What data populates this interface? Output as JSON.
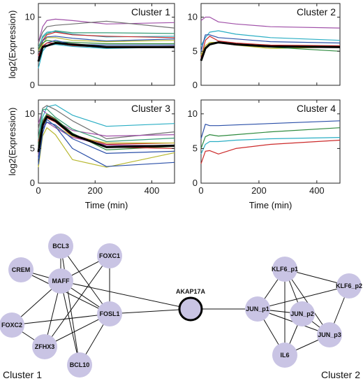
{
  "chart_data": [
    {
      "type": "line",
      "title": "Cluster 1",
      "ylabel": "log2(Expression)",
      "xlabel": "",
      "xlim": [
        0,
        480
      ],
      "ylim": [
        0,
        12
      ],
      "xticks": [
        0,
        200,
        400
      ],
      "yticks": [
        0,
        5,
        10
      ],
      "x": [
        0,
        15,
        30,
        60,
        120,
        240,
        480
      ],
      "grid": false,
      "series": [
        {
          "color": "#a050a8",
          "width": 1.2,
          "values": [
            6.3,
            8.6,
            9.5,
            9.7,
            9.5,
            9.0,
            9.2
          ]
        },
        {
          "color": "#707070",
          "width": 1.2,
          "values": [
            6.2,
            7.8,
            8.6,
            8.8,
            9.0,
            9.4,
            8.4
          ]
        },
        {
          "color": "#3a9e78",
          "width": 1.2,
          "values": [
            5.6,
            7.0,
            7.6,
            8.0,
            7.7,
            7.7,
            7.6
          ]
        },
        {
          "color": "#2aaec4",
          "width": 1.2,
          "values": [
            5.1,
            7.2,
            7.8,
            7.9,
            7.5,
            7.1,
            7.2
          ]
        },
        {
          "color": "#cc2a2a",
          "width": 1.2,
          "values": [
            5.2,
            6.6,
            7.4,
            7.8,
            7.4,
            7.2,
            7.0
          ]
        },
        {
          "color": "#2a4fa8",
          "width": 1.2,
          "values": [
            4.2,
            6.5,
            7.1,
            7.2,
            6.9,
            6.5,
            6.8
          ]
        },
        {
          "color": "#b8b830",
          "width": 1.2,
          "values": [
            5.0,
            6.0,
            7.0,
            7.0,
            6.6,
            6.4,
            6.6
          ]
        },
        {
          "color": "#2e8a3e",
          "width": 1.2,
          "values": [
            5.3,
            6.2,
            6.6,
            6.4,
            6.3,
            6.1,
            6.1
          ]
        },
        {
          "color": "#2a4fa8",
          "width": 1.2,
          "values": [
            3.6,
            5.6,
            6.2,
            6.6,
            6.0,
            5.9,
            5.9
          ]
        },
        {
          "color": "#cc2a2a",
          "width": 1.2,
          "values": [
            4.3,
            5.8,
            6.2,
            6.2,
            5.8,
            5.6,
            5.7
          ]
        },
        {
          "color": "#2aaec4",
          "width": 1.2,
          "values": [
            2.5,
            5.0,
            5.8,
            6.0,
            5.7,
            5.4,
            5.6
          ]
        },
        {
          "color": "#000000",
          "width": 3.0,
          "values": [
            3.5,
            5.6,
            5.8,
            6.2,
            6.0,
            5.6,
            5.6
          ]
        }
      ]
    },
    {
      "type": "line",
      "title": "Cluster 2",
      "ylabel": "",
      "xlabel": "",
      "xlim": [
        0,
        480
      ],
      "ylim": [
        0,
        12
      ],
      "xticks": [
        0,
        200,
        400
      ],
      "yticks": [
        0,
        5,
        10
      ],
      "x": [
        0,
        15,
        30,
        60,
        120,
        240,
        480
      ],
      "grid": false,
      "series": [
        {
          "color": "#a050a8",
          "width": 1.2,
          "values": [
            9.5,
            10.0,
            10.0,
            9.3,
            9.0,
            8.6,
            8.4
          ]
        },
        {
          "color": "#2aaec4",
          "width": 1.2,
          "values": [
            5.8,
            7.0,
            7.8,
            8.0,
            7.5,
            7.0,
            6.6
          ]
        },
        {
          "color": "#2a4fa8",
          "width": 1.2,
          "values": [
            5.0,
            7.4,
            7.4,
            7.0,
            6.8,
            6.4,
            6.2
          ]
        },
        {
          "color": "#cc2a2a",
          "width": 1.2,
          "values": [
            4.0,
            6.6,
            7.2,
            6.5,
            6.2,
            5.9,
            5.8
          ]
        },
        {
          "color": "#b8b830",
          "width": 1.2,
          "values": [
            4.4,
            5.8,
            6.3,
            6.3,
            5.9,
            5.4,
            5.6
          ]
        },
        {
          "color": "#2e8a3e",
          "width": 1.2,
          "values": [
            3.6,
            5.4,
            6.0,
            6.2,
            6.0,
            5.6,
            5.0
          ]
        },
        {
          "color": "#000000",
          "width": 3.0,
          "values": [
            3.6,
            5.4,
            6.0,
            6.3,
            6.0,
            5.7,
            5.6
          ]
        }
      ]
    },
    {
      "type": "line",
      "title": "Cluster 3",
      "ylabel": "log2(Expression)",
      "xlabel": "Time (min)",
      "xlim": [
        0,
        480
      ],
      "ylim": [
        0,
        12
      ],
      "xticks": [
        0,
        200,
        400
      ],
      "yticks": [
        0,
        5,
        10
      ],
      "x": [
        0,
        15,
        30,
        60,
        120,
        240,
        480
      ],
      "grid": false,
      "series": [
        {
          "color": "#2aaec4",
          "width": 1.2,
          "values": [
            6.3,
            9.5,
            11.0,
            11.3,
            9.8,
            8.2,
            8.6
          ]
        },
        {
          "color": "#707070",
          "width": 1.2,
          "values": [
            7.8,
            10.8,
            11.2,
            10.6,
            9.0,
            6.4,
            7.4
          ]
        },
        {
          "color": "#a050a8",
          "width": 1.2,
          "values": [
            8.6,
            10.5,
            10.0,
            9.0,
            7.6,
            6.8,
            7.0
          ]
        },
        {
          "color": "#3a9e78",
          "width": 1.2,
          "values": [
            6.5,
            10.6,
            10.7,
            9.5,
            7.8,
            6.0,
            6.5
          ]
        },
        {
          "color": "#cc2a2a",
          "width": 1.2,
          "values": [
            6.0,
            8.8,
            9.8,
            9.2,
            7.0,
            5.6,
            5.8
          ]
        },
        {
          "color": "#2e8a3e",
          "width": 1.2,
          "values": [
            5.5,
            9.0,
            10.0,
            9.3,
            7.2,
            4.8,
            5.3
          ]
        },
        {
          "color": "#cc2a2a",
          "width": 1.2,
          "values": [
            4.5,
            8.0,
            9.4,
            8.8,
            6.8,
            5.2,
            5.0
          ]
        },
        {
          "color": "#b8b830",
          "width": 1.2,
          "values": [
            4.8,
            8.2,
            9.2,
            8.2,
            6.8,
            5.8,
            5.8
          ]
        },
        {
          "color": "#a050a8",
          "width": 1.2,
          "values": [
            4.0,
            8.2,
            8.8,
            8.0,
            6.6,
            5.5,
            5.4
          ]
        },
        {
          "color": "#2a4fa8",
          "width": 1.2,
          "values": [
            3.5,
            7.8,
            8.8,
            8.4,
            6.4,
            4.3,
            4.6
          ]
        },
        {
          "color": "#b8b830",
          "width": 1.2,
          "values": [
            2.3,
            6.8,
            8.0,
            7.0,
            3.4,
            2.3,
            4.4
          ]
        },
        {
          "color": "#2a4fa8",
          "width": 1.2,
          "values": [
            2.7,
            7.2,
            9.2,
            8.2,
            5.0,
            2.4,
            3.0
          ]
        },
        {
          "color": "#000000",
          "width": 3.0,
          "values": [
            4.5,
            8.4,
            9.6,
            9.0,
            7.0,
            5.2,
            5.4
          ]
        }
      ]
    },
    {
      "type": "line",
      "title": "Cluster 4",
      "ylabel": "",
      "xlabel": "Time (min)",
      "xlim": [
        0,
        480
      ],
      "ylim": [
        0,
        12
      ],
      "xticks": [
        0,
        200,
        400
      ],
      "yticks": [
        0,
        5,
        10
      ],
      "x": [
        0,
        15,
        30,
        60,
        120,
        240,
        480
      ],
      "grid": false,
      "series": [
        {
          "color": "#2a4fa8",
          "width": 1.2,
          "values": [
            6.4,
            8.5,
            8.3,
            8.3,
            8.4,
            8.6,
            9.0
          ]
        },
        {
          "color": "#2e8a3e",
          "width": 1.2,
          "values": [
            5.0,
            6.7,
            7.0,
            6.8,
            7.0,
            7.4,
            8.0
          ]
        },
        {
          "color": "#2aaec4",
          "width": 1.2,
          "values": [
            4.2,
            5.6,
            6.0,
            6.0,
            6.2,
            6.4,
            6.6
          ]
        },
        {
          "color": "#cc2a2a",
          "width": 1.2,
          "values": [
            2.8,
            4.6,
            4.7,
            4.2,
            5.0,
            5.6,
            6.2
          ]
        }
      ]
    }
  ],
  "network": {
    "node_fill": "#c9c4e4",
    "hub_fill": "#c9c4e4",
    "nodes": [
      {
        "id": "BCL3",
        "label": "BCL3"
      },
      {
        "id": "FOXC1",
        "label": "FOXC1"
      },
      {
        "id": "CREM",
        "label": "CREM"
      },
      {
        "id": "MAFF",
        "label": "MAFF"
      },
      {
        "id": "FOXC2",
        "label": "FOXC2"
      },
      {
        "id": "FOSL1",
        "label": "FOSL1"
      },
      {
        "id": "ZFHX3",
        "label": "ZFHX3"
      },
      {
        "id": "BCL10",
        "label": "BCL10"
      },
      {
        "id": "AKAP17A",
        "label": "AKAP17A"
      },
      {
        "id": "KLF6_p1",
        "label": "KLF6_p1"
      },
      {
        "id": "KLF6_p2",
        "label": "KLF6_p2"
      },
      {
        "id": "JUN_p1",
        "label": "JUN_p1"
      },
      {
        "id": "JUN_p2",
        "label": "JUN_p2"
      },
      {
        "id": "JUN_p3",
        "label": "JUN_p3"
      },
      {
        "id": "IL6",
        "label": "IL6"
      }
    ],
    "edges": [
      [
        "MAFF",
        "BCL3"
      ],
      [
        "MAFF",
        "FOXC1"
      ],
      [
        "MAFF",
        "CREM"
      ],
      [
        "MAFF",
        "FOXC2"
      ],
      [
        "MAFF",
        "ZFHX3"
      ],
      [
        "MAFF",
        "BCL10"
      ],
      [
        "MAFF",
        "FOSL1"
      ],
      [
        "MAFF",
        "AKAP17A"
      ],
      [
        "BCL3",
        "FOSL1"
      ],
      [
        "FOXC1",
        "FOSL1"
      ],
      [
        "FOXC1",
        "ZFHX3"
      ],
      [
        "BCL3",
        "BCL10"
      ],
      [
        "CREM",
        "FOSL1"
      ],
      [
        "FOXC2",
        "FOSL1"
      ],
      [
        "FOXC2",
        "ZFHX3"
      ],
      [
        "ZFHX3",
        "FOSL1"
      ],
      [
        "BCL10",
        "FOSL1"
      ],
      [
        "FOSL1",
        "AKAP17A"
      ],
      [
        "AKAP17A",
        "JUN_p1"
      ],
      [
        "KLF6_p1",
        "KLF6_p2"
      ],
      [
        "KLF6_p1",
        "JUN_p1"
      ],
      [
        "KLF6_p1",
        "JUN_p2"
      ],
      [
        "KLF6_p1",
        "JUN_p3"
      ],
      [
        "KLF6_p1",
        "IL6"
      ],
      [
        "KLF6_p2",
        "JUN_p1"
      ],
      [
        "KLF6_p2",
        "JUN_p3"
      ],
      [
        "JUN_p1",
        "JUN_p2"
      ],
      [
        "JUN_p1",
        "JUN_p3"
      ],
      [
        "JUN_p1",
        "IL6"
      ],
      [
        "JUN_p2",
        "JUN_p3"
      ],
      [
        "JUN_p2",
        "IL6"
      ],
      [
        "JUN_p3",
        "IL6"
      ]
    ],
    "cluster_labels": [
      "Cluster 1",
      "Cluster 2"
    ]
  }
}
